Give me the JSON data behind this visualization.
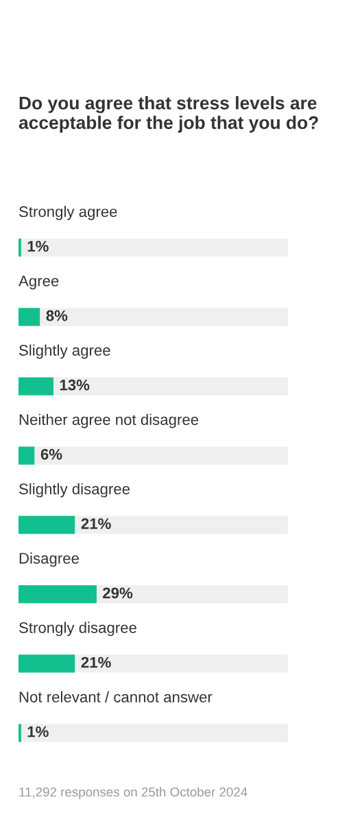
{
  "chart_data": {
    "type": "bar",
    "orientation": "horizontal",
    "stacked": true,
    "title": "Do you agree that stress levels are acceptable for the job that you do?",
    "categories": [
      "Strongly agree",
      "Agree",
      "Slightly agree",
      "Neither agree not disagree",
      "Slightly disagree",
      "Disagree",
      "Strongly disagree",
      "Not relevant / cannot answer"
    ],
    "series": [
      {
        "color": "#14bf8f",
        "values": [
          1,
          8,
          13,
          6,
          21,
          29,
          21,
          1
        ],
        "value_labels": [
          "1%",
          "8%",
          "13%",
          "6%",
          "21%",
          "29%",
          "21%",
          "1%"
        ]
      },
      {
        "color": "#efefef",
        "values": [
          99,
          92,
          87,
          94,
          79,
          71,
          79,
          99
        ]
      }
    ],
    "xlim": [
      0,
      100
    ],
    "legend": false,
    "annotations": [
      "11,292 responses on 25th October 2024"
    ]
  }
}
